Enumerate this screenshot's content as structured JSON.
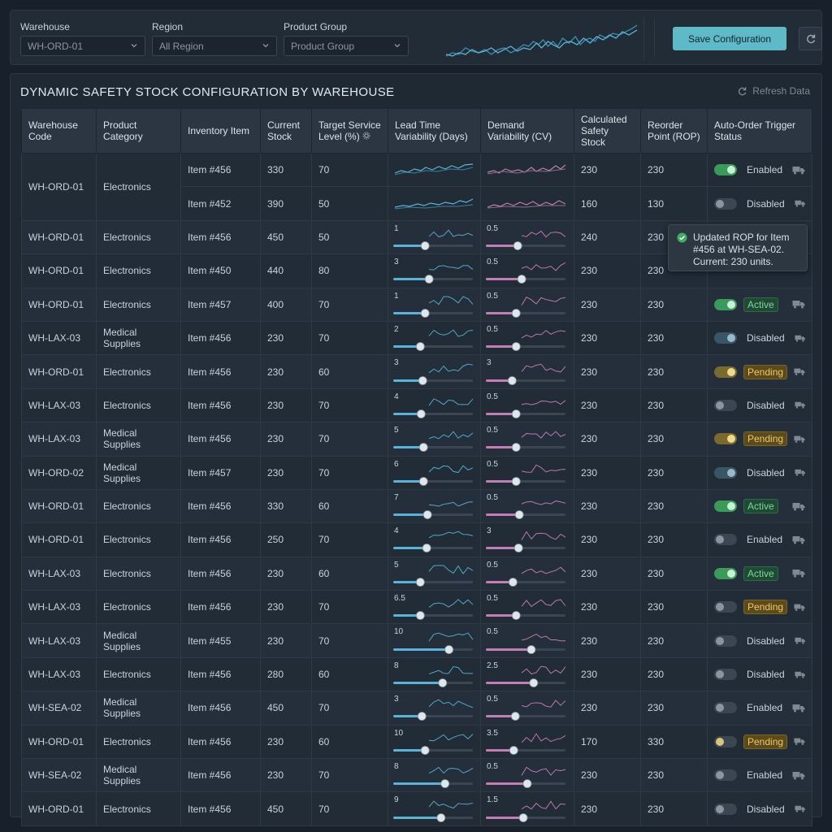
{
  "filters": {
    "warehouse": {
      "label": "Warehouse",
      "value": "WH-ORD-01"
    },
    "region": {
      "label": "Region",
      "value": "All Region"
    },
    "product_group": {
      "label": "Product Group",
      "value": "Product Group"
    }
  },
  "toolbar": {
    "save_label": "Save Configuration"
  },
  "panel": {
    "title": "DYNAMIC SAFETY STOCK CONFIGURATION BY WAREHOUSE",
    "refresh_label": "Refresh Data"
  },
  "columns": [
    "Warehouse Code",
    "Product Category",
    "Inventory Item",
    "Current Stock",
    "Target Service Level (%)",
    "Lead Time Variability (Days)",
    "Demand Variability (CV)",
    "Calculated Safety Stock",
    "Reorder Point (ROP)",
    "Auto-Order Trigger Status"
  ],
  "group_row": {
    "warehouse": "WH-ORD-01",
    "category": "Electronics",
    "items": [
      {
        "item": "Item #456",
        "stock": "330",
        "service": "70",
        "safety": "230",
        "rop": "230",
        "toggle": "on",
        "status": "Enabled"
      },
      {
        "item": "Item #452",
        "stock": "390",
        "service": "50",
        "safety": "160",
        "rop": "130",
        "toggle": "off",
        "status": "Disabled"
      }
    ]
  },
  "rows": [
    {
      "warehouse": "WH-ORD-01",
      "category": "Electronics",
      "item": "Item #456",
      "stock": "450",
      "service": "50",
      "lead": "1",
      "lead_frac": 0.4,
      "demand": "0.5",
      "demand_frac": 0.4,
      "safety": "240",
      "rop": "230",
      "toggle": "on",
      "status": "Enabled",
      "badge": "plain"
    },
    {
      "warehouse": "WH-ORD-01",
      "category": "Electronics",
      "item": "Item #450",
      "stock": "440",
      "service": "80",
      "lead": "3",
      "lead_frac": 0.45,
      "demand": "0.5",
      "demand_frac": 0.45,
      "safety": "230",
      "rop": "230",
      "toggle": "",
      "status": "",
      "badge": "none"
    },
    {
      "warehouse": "WH-ORD-01",
      "category": "Electronics",
      "item": "Item #457",
      "stock": "400",
      "service": "70",
      "lead": "1",
      "lead_frac": 0.4,
      "demand": "0.5",
      "demand_frac": 0.38,
      "safety": "230",
      "rop": "230",
      "toggle": "on",
      "status": "Active",
      "badge": "active"
    },
    {
      "warehouse": "WH-LAX-03",
      "category": "Medical Supplies",
      "item": "Item #456",
      "stock": "230",
      "service": "70",
      "lead": "2",
      "lead_frac": 0.34,
      "demand": "0.5",
      "demand_frac": 0.38,
      "safety": "230",
      "rop": "230",
      "toggle": "dis",
      "status": "Disabled",
      "badge": "plain"
    },
    {
      "warehouse": "WH-ORD-01",
      "category": "Electronics",
      "item": "Item #456",
      "stock": "230",
      "service": "60",
      "lead": "3",
      "lead_frac": 0.37,
      "demand": "3",
      "demand_frac": 0.33,
      "safety": "230",
      "rop": "230",
      "toggle": "pend",
      "status": "Pending",
      "badge": "pending"
    },
    {
      "warehouse": "WH-LAX-03",
      "category": "Electronics",
      "item": "Item #456",
      "stock": "230",
      "service": "70",
      "lead": "4",
      "lead_frac": 0.35,
      "demand": "0.5",
      "demand_frac": 0.38,
      "safety": "230",
      "rop": "230",
      "toggle": "off",
      "status": "Disabled",
      "badge": "plain"
    },
    {
      "warehouse": "WH-LAX-03",
      "category": "Medical Supplies",
      "item": "Item #456",
      "stock": "230",
      "service": "70",
      "lead": "5",
      "lead_frac": 0.38,
      "demand": "0.5",
      "demand_frac": 0.38,
      "safety": "230",
      "rop": "230",
      "toggle": "pend",
      "status": "Pending",
      "badge": "pending"
    },
    {
      "warehouse": "WH-ORD-02",
      "category": "Medical Supplies",
      "item": "Item #457",
      "stock": "230",
      "service": "70",
      "lead": "6",
      "lead_frac": 0.38,
      "demand": "0.5",
      "demand_frac": 0.38,
      "safety": "230",
      "rop": "230",
      "toggle": "dis",
      "status": "Disabled",
      "badge": "plain"
    },
    {
      "warehouse": "WH-ORD-01",
      "category": "Electronics",
      "item": "Item #456",
      "stock": "330",
      "service": "60",
      "lead": "7",
      "lead_frac": 0.43,
      "demand": "0.5",
      "demand_frac": 0.42,
      "safety": "230",
      "rop": "230",
      "toggle": "on",
      "status": "Active",
      "badge": "active"
    },
    {
      "warehouse": "WH-ORD-01",
      "category": "Electronics",
      "item": "Item #456",
      "stock": "250",
      "service": "70",
      "lead": "4",
      "lead_frac": 0.42,
      "demand": "3",
      "demand_frac": 0.41,
      "safety": "230",
      "rop": "230",
      "toggle": "off",
      "status": "Enabled",
      "badge": "plain"
    },
    {
      "warehouse": "WH-LAX-03",
      "category": "Electronics",
      "item": "Item #456",
      "stock": "230",
      "service": "60",
      "lead": "5",
      "lead_frac": 0.34,
      "demand": "0.5",
      "demand_frac": 0.34,
      "safety": "230",
      "rop": "230",
      "toggle": "on",
      "status": "Active",
      "badge": "active"
    },
    {
      "warehouse": "WH-LAX-03",
      "category": "Electronics",
      "item": "Item #456",
      "stock": "230",
      "service": "70",
      "lead": "6.5",
      "lead_frac": 0.34,
      "demand": "0.5",
      "demand_frac": 0.38,
      "safety": "230",
      "rop": "230",
      "toggle": "off",
      "status": "Pending",
      "badge": "pending"
    },
    {
      "warehouse": "WH-LAX-03",
      "category": "Medical Supplies",
      "item": "Item #455",
      "stock": "230",
      "service": "70",
      "lead": "10",
      "lead_frac": 0.7,
      "demand": "0.5",
      "demand_frac": 0.57,
      "safety": "230",
      "rop": "230",
      "toggle": "off",
      "status": "Disabled",
      "badge": "plain"
    },
    {
      "warehouse": "WH-LAX-03",
      "category": "Electronics",
      "item": "Item #456",
      "stock": "280",
      "service": "60",
      "lead": "8",
      "lead_frac": 0.62,
      "demand": "2.5",
      "demand_frac": 0.6,
      "safety": "230",
      "rop": "230",
      "toggle": "off",
      "status": "Disabled",
      "badge": "plain"
    },
    {
      "warehouse": "WH-SEA-02",
      "category": "Medical Supplies",
      "item": "Item #456",
      "stock": "450",
      "service": "70",
      "lead": "3",
      "lead_frac": 0.36,
      "demand": "0.5",
      "demand_frac": 0.37,
      "safety": "230",
      "rop": "230",
      "toggle": "off",
      "status": "Enabled",
      "badge": "plain"
    },
    {
      "warehouse": "WH-ORD-01",
      "category": "Electronics",
      "item": "Item #456",
      "stock": "230",
      "service": "60",
      "lead": "10",
      "lead_frac": 0.4,
      "demand": "3.5",
      "demand_frac": 0.35,
      "safety": "170",
      "rop": "330",
      "toggle": "pendoff",
      "status": "Pending",
      "badge": "pending"
    },
    {
      "warehouse": "WH-SEA-02",
      "category": "Medical Supplies",
      "item": "Item #456",
      "stock": "230",
      "service": "70",
      "lead": "8",
      "lead_frac": 0.65,
      "demand": "0.5",
      "demand_frac": 0.52,
      "safety": "230",
      "rop": "230",
      "toggle": "off",
      "status": "Enabled",
      "badge": "plain"
    },
    {
      "warehouse": "WH-ORD-01",
      "category": "Electronics",
      "item": "Item #456",
      "stock": "450",
      "service": "70",
      "lead": "9",
      "lead_frac": 0.6,
      "demand": "1.5",
      "demand_frac": 0.47,
      "safety": "230",
      "rop": "230",
      "toggle": "off",
      "status": "Disabled",
      "badge": "plain"
    }
  ],
  "toast": {
    "message": "Updated ROP for Item #456 at WH-SEA-02. Current: 230 units."
  },
  "colors": {
    "accent": "#5dbac6",
    "lead_line": "#5ab4d8",
    "demand_line": "#c27fb4",
    "active": "#3a9a5a",
    "pending": "#f0c860"
  },
  "icons": {
    "dropdown": "chevron-down-icon",
    "refresh": "refresh-icon",
    "truck": "truck-icon",
    "gear": "gear-icon",
    "check": "check-circle-icon"
  }
}
